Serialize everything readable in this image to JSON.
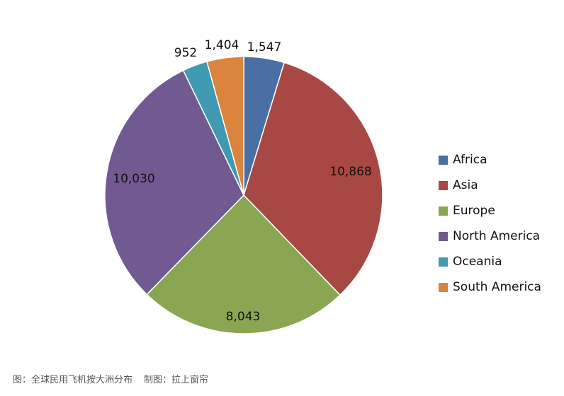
{
  "chart_data": {
    "type": "pie",
    "title": "",
    "start_angle_deg": 0,
    "direction": "clockwise",
    "slices": [
      {
        "label": "Africa",
        "value": 1547,
        "value_label": "1,547",
        "color": "#4A6FA5"
      },
      {
        "label": "Asia",
        "value": 10868,
        "value_label": "10,868",
        "color": "#A84844"
      },
      {
        "label": "Europe",
        "value": 8043,
        "value_label": "8,043",
        "color": "#8BA653"
      },
      {
        "label": "North America",
        "value": 10030,
        "value_label": "10,030",
        "color": "#715A92"
      },
      {
        "label": "Oceania",
        "value": 952,
        "value_label": "952",
        "color": "#3F9AB2"
      },
      {
        "label": "South America",
        "value": 1404,
        "value_label": "1,404",
        "color": "#DB843D"
      }
    ],
    "legend": {
      "position": "right"
    }
  },
  "caption": {
    "left": "图：全球民用飞机按大洲分布",
    "right": "制图：拉上窗帘"
  }
}
